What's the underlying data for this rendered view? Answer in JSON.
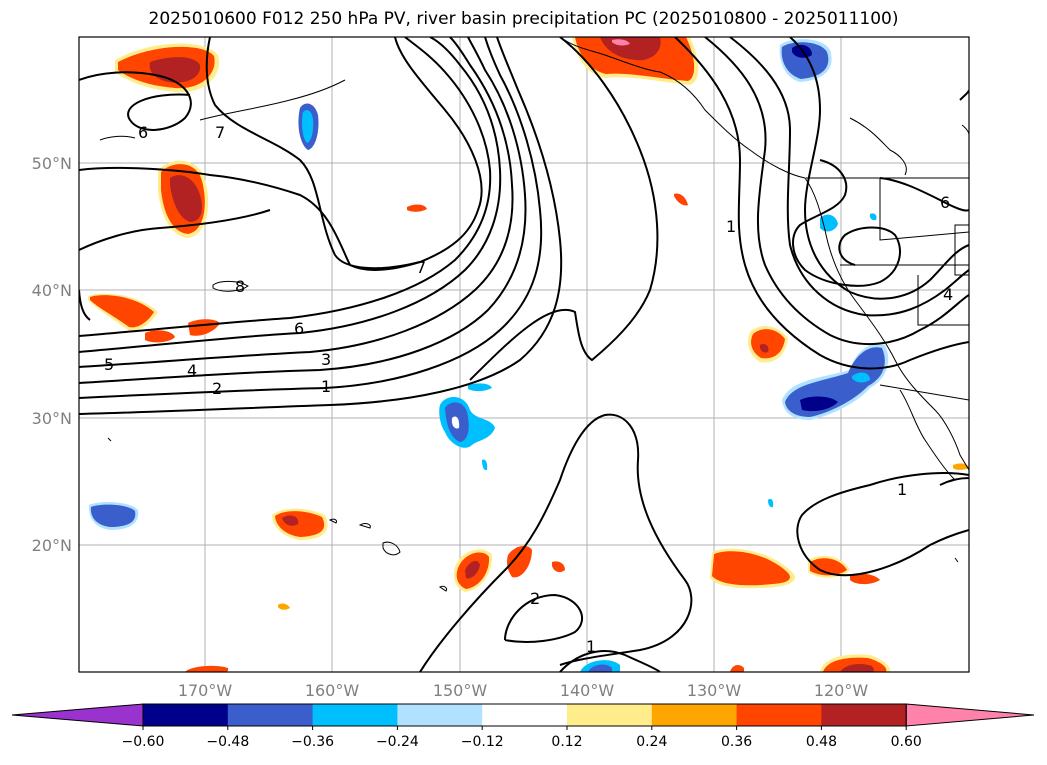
{
  "title": "2025010600 F012 250 hPa PV, river basin precipitation PC (2025010800 - 2025011100)",
  "map": {
    "lat_labels": [
      "50°N",
      "40°N",
      "30°N",
      "20°N"
    ],
    "lon_labels": [
      "170°W",
      "160°W",
      "150°W",
      "140°W",
      "130°W",
      "120°W"
    ],
    "grid": true,
    "contour_labels": [
      "6",
      "7",
      "7",
      "6",
      "5",
      "4",
      "3",
      "2",
      "1",
      "1",
      "6",
      "4",
      "1",
      "2",
      "1",
      "8"
    ]
  },
  "colorbar": {
    "ticks": [
      "−0.60",
      "−0.48",
      "−0.36",
      "−0.24",
      "−0.12",
      "0.12",
      "0.24",
      "0.36",
      "0.48",
      "0.60"
    ],
    "colors": [
      "#9a32cd",
      "#00008b",
      "#3a5fcd",
      "#00bfff",
      "#b0e2ff",
      "#ffffff",
      "#ffec8b",
      "#ffa500",
      "#ff4500",
      "#b22222",
      "#ff82ab"
    ]
  },
  "colors": {
    "neg_strong": "#00008b",
    "neg_mid": "#3a5fcd",
    "neg_light": "#00bfff",
    "neg_faint": "#b0e2ff",
    "pos_faint": "#ffec8b",
    "pos_light": "#ffa500",
    "pos_mid": "#ff4500",
    "pos_strong": "#b22222",
    "pos_max": "#ff82ab"
  }
}
